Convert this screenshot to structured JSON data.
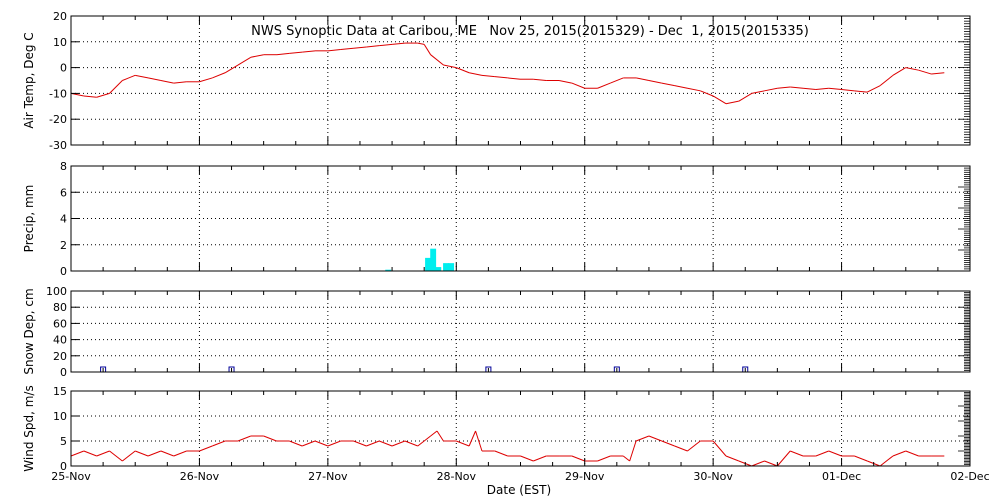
{
  "chart_data": [
    {
      "type": "line",
      "title": "NWS Synoptic Data at Caribou, ME   Nov 25, 2015(2015329) - Dec  1, 2015(2015335)",
      "ylabel": "Air Temp, Deg C",
      "ylim": [
        -30,
        20
      ],
      "yticks": [
        -30,
        -20,
        -10,
        0,
        10,
        20
      ],
      "color": "#dd0000",
      "x": [
        0,
        0.1,
        0.2,
        0.3,
        0.4,
        0.5,
        0.6,
        0.7,
        0.8,
        0.9,
        1.0,
        1.1,
        1.2,
        1.3,
        1.4,
        1.5,
        1.6,
        1.7,
        1.8,
        1.9,
        2.0,
        2.1,
        2.2,
        2.3,
        2.4,
        2.5,
        2.6,
        2.7,
        2.75,
        2.8,
        2.9,
        3.0,
        3.1,
        3.2,
        3.3,
        3.4,
        3.5,
        3.6,
        3.7,
        3.8,
        3.9,
        4.0,
        4.1,
        4.2,
        4.3,
        4.4,
        4.5,
        4.6,
        4.7,
        4.8,
        4.9,
        5.0,
        5.1,
        5.2,
        5.3,
        5.4,
        5.5,
        5.6,
        5.7,
        5.8,
        5.9,
        6.0,
        6.1,
        6.2,
        6.3,
        6.4,
        6.5,
        6.6,
        6.7,
        6.8
      ],
      "y": [
        -10,
        -11,
        -11.5,
        -10,
        -5,
        -3,
        -4,
        -5,
        -6,
        -5.5,
        -5.5,
        -4,
        -2,
        1,
        4,
        5,
        5,
        5.5,
        6,
        6.5,
        6.5,
        7,
        7.5,
        8,
        8.5,
        9,
        9.5,
        9.5,
        9,
        5,
        1,
        0,
        -2,
        -3,
        -3.5,
        -4,
        -4.5,
        -4.5,
        -5,
        -5,
        -6,
        -8,
        -8,
        -6,
        -4,
        -4,
        -5,
        -6,
        -7,
        -8,
        -9,
        -11,
        -14,
        -13,
        -10,
        -9,
        -8,
        -7.5,
        -8,
        -8.5,
        -8,
        -8.5,
        -9,
        -9.5,
        -7,
        -3,
        0,
        -1,
        -2.5,
        -2
      ]
    },
    {
      "type": "bar",
      "ylabel": "Precip, mm",
      "ylim": [
        0,
        8
      ],
      "yticks": [
        0,
        2,
        4,
        6,
        8
      ],
      "color": "#00eeee",
      "x": [
        2.47,
        2.78,
        2.82,
        2.86,
        2.92,
        2.96
      ],
      "values": [
        0.1,
        1.0,
        1.7,
        0.3,
        0.6,
        0.6
      ]
    },
    {
      "type": "scatter",
      "ylabel": "Snow Dep, cm",
      "ylim": [
        0,
        100
      ],
      "yticks": [
        0,
        20,
        40,
        60,
        80,
        100
      ],
      "color": "#000099",
      "x": [
        0.25,
        1.25,
        3.25,
        4.25,
        5.25
      ],
      "y": [
        0,
        0,
        0,
        0,
        0
      ]
    },
    {
      "type": "line",
      "ylabel": "Wind Spd, m/s",
      "ylim": [
        0,
        15
      ],
      "yticks": [
        0,
        5,
        10,
        15
      ],
      "color": "#dd0000",
      "x": [
        0,
        0.1,
        0.2,
        0.3,
        0.4,
        0.5,
        0.6,
        0.7,
        0.8,
        0.9,
        1.0,
        1.1,
        1.2,
        1.3,
        1.4,
        1.5,
        1.6,
        1.7,
        1.8,
        1.9,
        2.0,
        2.1,
        2.2,
        2.3,
        2.4,
        2.5,
        2.6,
        2.7,
        2.8,
        2.85,
        2.9,
        3.0,
        3.1,
        3.15,
        3.2,
        3.3,
        3.4,
        3.5,
        3.6,
        3.7,
        3.8,
        3.9,
        4.0,
        4.1,
        4.2,
        4.3,
        4.35,
        4.4,
        4.5,
        4.6,
        4.7,
        4.8,
        4.9,
        5.0,
        5.1,
        5.2,
        5.3,
        5.4,
        5.5,
        5.6,
        5.7,
        5.8,
        5.9,
        6.0,
        6.1,
        6.2,
        6.3,
        6.4,
        6.5,
        6.6,
        6.7,
        6.8
      ],
      "y": [
        2,
        3,
        2,
        3,
        1,
        3,
        2,
        3,
        2,
        3,
        3,
        4,
        5,
        5,
        6,
        6,
        5,
        5,
        4,
        5,
        4,
        5,
        5,
        4,
        5,
        4,
        5,
        4,
        6,
        7,
        5,
        5,
        4,
        7,
        3,
        3,
        2,
        2,
        1,
        2,
        2,
        2,
        1,
        1,
        2,
        2,
        1,
        5,
        6,
        5,
        4,
        3,
        5,
        5,
        2,
        1,
        0,
        1,
        0,
        3,
        2,
        2,
        3,
        2,
        2,
        1,
        0,
        2,
        3,
        2,
        2,
        2
      ]
    }
  ],
  "x_axis": {
    "label": "Date (EST)",
    "ticks": [
      "25-Nov",
      "26-Nov",
      "27-Nov",
      "28-Nov",
      "29-Nov",
      "30-Nov",
      "01-Dec",
      "02-Dec"
    ]
  }
}
